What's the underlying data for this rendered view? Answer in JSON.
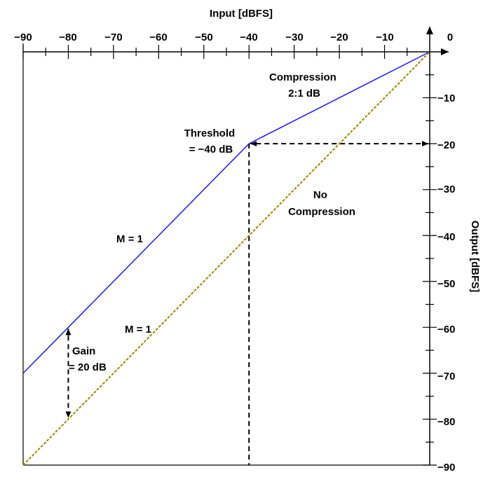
{
  "chart_data": {
    "type": "line",
    "title": "",
    "xlabel": "Input [dBFS]",
    "ylabel": "Output [dBFS]",
    "xlim": [
      -90,
      0
    ],
    "ylim": [
      -90,
      0
    ],
    "x_ticks": [
      "−90",
      "−80",
      "−70",
      "−60",
      "−50",
      "−40",
      "−30",
      "−20",
      "−10",
      "0"
    ],
    "y_ticks": [
      "0",
      "−10",
      "−20",
      "−30",
      "−40",
      "−50",
      "−60",
      "−70",
      "−80",
      "−90"
    ],
    "x_tick_values": [
      -90,
      -80,
      -70,
      -60,
      -50,
      -40,
      -30,
      -20,
      -10,
      0
    ],
    "y_tick_values": [
      0,
      -10,
      -20,
      -30,
      -40,
      -50,
      -60,
      -70,
      -80,
      -90
    ],
    "series": [
      {
        "x": [
          -90,
          -40,
          0
        ],
        "y": [
          -70,
          -20,
          0
        ],
        "color": "#1a1aff",
        "style": "solid"
      },
      {
        "x": [
          -90,
          0
        ],
        "y": [
          -90,
          0
        ],
        "color": "#9a8a00",
        "style": "dashed"
      }
    ],
    "guides": [
      {
        "kind": "vline",
        "x": -40,
        "y": [
          -90,
          -20
        ]
      },
      {
        "kind": "harrow",
        "x": [
          -40,
          0
        ],
        "y": -20
      },
      {
        "kind": "varrow",
        "x": -80,
        "y": [
          -60,
          -80
        ]
      }
    ],
    "annotations": [
      {
        "lines": [
          "Compression",
          "2:1 dB"
        ],
        "x": -30,
        "y": -8
      },
      {
        "lines": [
          "Threshold",
          "= −40 dB"
        ],
        "x": -45,
        "y": -20
      },
      {
        "lines": [
          "No",
          "Compression"
        ],
        "x": -24,
        "y": -32
      },
      {
        "lines": [
          "M = 1"
        ],
        "x": -72,
        "y": -44
      },
      {
        "lines": [
          "M = 1"
        ],
        "x": -67,
        "y": -63
      },
      {
        "lines": [
          "Gain",
          "= 20 dB"
        ],
        "x": -78,
        "y": -70
      }
    ]
  }
}
